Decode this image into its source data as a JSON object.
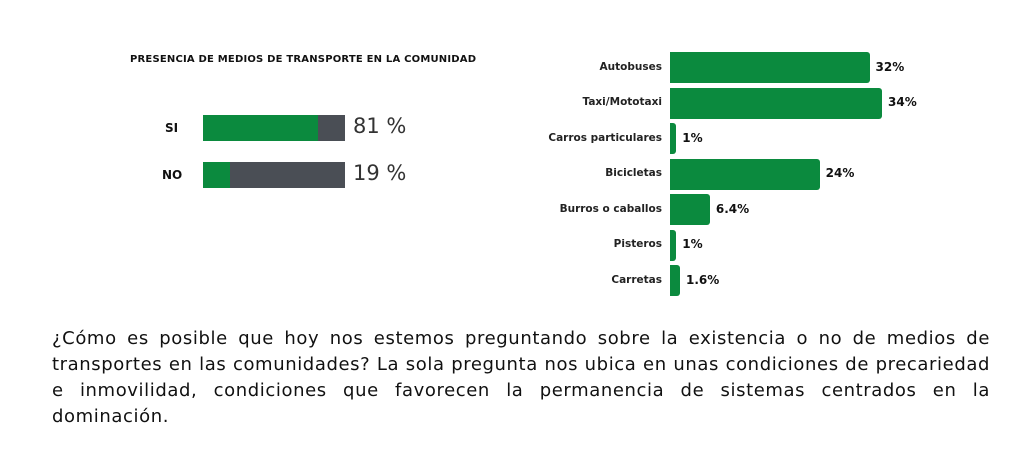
{
  "chart_data": [
    {
      "type": "bar",
      "orientation": "horizontal",
      "title": "PRESENCIA DE MEDIOS DE TRANSPORTE EN LA COMUNIDAD",
      "categories": [
        "SI",
        "NO"
      ],
      "values": [
        81,
        19
      ],
      "value_labels": [
        "81 %",
        "19 %"
      ],
      "xlim": [
        0,
        100
      ],
      "grid": false,
      "colors": {
        "fill": "#0b8a3e",
        "track": "#4a4e55"
      }
    },
    {
      "type": "bar",
      "orientation": "horizontal",
      "title": "",
      "categories": [
        "Autobuses",
        "Taxi/Mototaxi",
        "Carros particulares",
        "Bicicletas",
        "Burros o caballos",
        "Pisteros",
        "Carretas"
      ],
      "values": [
        32,
        34,
        1,
        24,
        6.4,
        1,
        1.6
      ],
      "value_labels": [
        "32%",
        "34%",
        "1%",
        "24%",
        "6.4%",
        "1%",
        "1.6%"
      ],
      "grid": false,
      "colors": {
        "bar": "#0b8a3e"
      }
    }
  ],
  "paragraph": "¿Cómo es posible que hoy nos estemos preguntando sobre la existencia o no de medios de transportes en las comunidades? La sola pregunta nos ubica en unas condiciones de precariedad e inmovilidad, condiciones que favorecen la permanencia de sistemas centrados en la dominación."
}
